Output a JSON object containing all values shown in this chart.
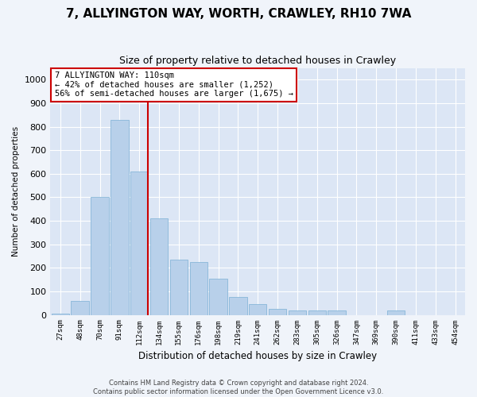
{
  "title": "7, ALLYINGTON WAY, WORTH, CRAWLEY, RH10 7WA",
  "subtitle": "Size of property relative to detached houses in Crawley",
  "xlabel": "Distribution of detached houses by size in Crawley",
  "ylabel": "Number of detached properties",
  "categories": [
    "27sqm",
    "48sqm",
    "70sqm",
    "91sqm",
    "112sqm",
    "134sqm",
    "155sqm",
    "176sqm",
    "198sqm",
    "219sqm",
    "241sqm",
    "262sqm",
    "283sqm",
    "305sqm",
    "326sqm",
    "347sqm",
    "369sqm",
    "390sqm",
    "411sqm",
    "433sqm",
    "454sqm"
  ],
  "values": [
    5,
    60,
    500,
    830,
    610,
    410,
    235,
    225,
    155,
    75,
    45,
    25,
    20,
    20,
    20,
    0,
    0,
    20,
    0,
    0,
    0
  ],
  "bar_color": "#b8d0ea",
  "bar_edge_color": "#7aafd4",
  "vline_color": "#cc0000",
  "vline_x_index": 4,
  "annotation_text": "7 ALLYINGTON WAY: 110sqm\n← 42% of detached houses are smaller (1,252)\n56% of semi-detached houses are larger (1,675) →",
  "annotation_box_facecolor": "#ffffff",
  "annotation_box_edgecolor": "#cc0000",
  "ylim": [
    0,
    1050
  ],
  "yticks": [
    0,
    100,
    200,
    300,
    400,
    500,
    600,
    700,
    800,
    900,
    1000
  ],
  "bg_color": "#dce6f5",
  "fig_bg_color": "#f0f4fa",
  "footer_line1": "Contains HM Land Registry data © Crown copyright and database right 2024.",
  "footer_line2": "Contains public sector information licensed under the Open Government Licence v3.0."
}
